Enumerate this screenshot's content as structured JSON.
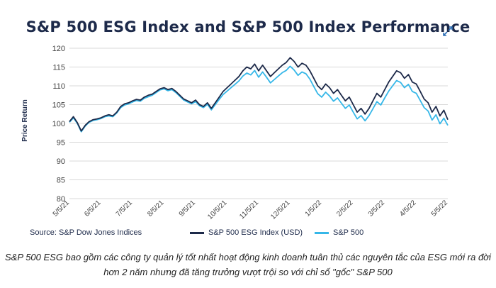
{
  "chart_data": {
    "type": "line",
    "title": "S&P 500 ESG Index and S&P 500 Index Performance",
    "ylabel": "Price Return",
    "xlabel": "",
    "ylim": [
      80,
      120
    ],
    "yticks": [
      80,
      85,
      90,
      95,
      100,
      105,
      110,
      115,
      120
    ],
    "xticks": [
      "5/5/21",
      "6/5/21",
      "7/5/21",
      "8/5/21",
      "9/5/21",
      "10/5/21",
      "11/5/21",
      "12/5/21",
      "1/5/22",
      "2/5/22",
      "3/5/22",
      "4/5/22",
      "5/5/22"
    ],
    "x_index": [
      0,
      1,
      2,
      3,
      4,
      5,
      6,
      7,
      8,
      9,
      10,
      11,
      12,
      13,
      14,
      15,
      16,
      17,
      18,
      19,
      20,
      21,
      22,
      23,
      24,
      25,
      26,
      27,
      28,
      29,
      30,
      31,
      32,
      33,
      34,
      35,
      36,
      37,
      38,
      39,
      40,
      41,
      42,
      43,
      44,
      45,
      46,
      47,
      48,
      49,
      50,
      51,
      52,
      53,
      54,
      55,
      56,
      57,
      58,
      59,
      60,
      61,
      62,
      63,
      64,
      65,
      66,
      67,
      68,
      69,
      70,
      71,
      72,
      73,
      74,
      75,
      76,
      77,
      78,
      79,
      80,
      81,
      82,
      83,
      84,
      85,
      86,
      87,
      88,
      89,
      90,
      91,
      92,
      93,
      94,
      95,
      96
    ],
    "series": [
      {
        "name": "S&P 500 ESG Index (USD)",
        "color": "#1d2a4a",
        "values": [
          100.5,
          101.8,
          100.2,
          98.0,
          99.5,
          100.5,
          101.0,
          101.2,
          101.5,
          102.0,
          102.3,
          102.0,
          103.0,
          104.5,
          105.2,
          105.5,
          106.0,
          106.4,
          106.2,
          107.0,
          107.5,
          107.8,
          108.5,
          109.2,
          109.5,
          109.0,
          109.3,
          108.5,
          107.5,
          106.5,
          106.0,
          105.5,
          106.2,
          105.0,
          104.5,
          105.5,
          104.0,
          105.5,
          107.0,
          108.5,
          109.5,
          110.5,
          111.5,
          112.5,
          114.0,
          115.0,
          114.5,
          115.8,
          114.0,
          115.5,
          114.0,
          112.5,
          113.5,
          114.5,
          115.5,
          116.2,
          117.5,
          116.5,
          115.0,
          116.0,
          115.5,
          114.0,
          112.0,
          110.0,
          109.0,
          110.5,
          109.5,
          108.0,
          109.0,
          107.5,
          106.0,
          107.0,
          105.0,
          103.0,
          104.0,
          102.5,
          104.0,
          106.0,
          108.0,
          107.0,
          109.0,
          111.0,
          112.5,
          114.0,
          113.5,
          112.0,
          113.0,
          111.0,
          110.5,
          108.5,
          106.5,
          105.5,
          103.0,
          104.5,
          102.0,
          103.5,
          101.0
        ]
      },
      {
        "name": "S&P 500",
        "color": "#36b7e8",
        "values": [
          100.3,
          101.5,
          100.0,
          97.8,
          99.3,
          100.3,
          100.8,
          101.0,
          101.3,
          101.8,
          102.0,
          101.8,
          102.8,
          104.2,
          104.9,
          105.2,
          105.7,
          106.1,
          105.9,
          106.7,
          107.1,
          107.5,
          108.2,
          108.9,
          109.2,
          108.7,
          109.0,
          108.2,
          107.2,
          106.2,
          105.7,
          105.2,
          105.8,
          104.7,
          104.2,
          105.1,
          103.6,
          105.0,
          106.4,
          107.7,
          108.6,
          109.5,
          110.4,
          111.3,
          112.6,
          113.4,
          112.9,
          114.1,
          112.3,
          113.7,
          112.3,
          110.8,
          111.7,
          112.6,
          113.5,
          114.1,
          115.2,
          114.2,
          112.8,
          113.7,
          113.2,
          111.8,
          109.8,
          107.9,
          107.0,
          108.3,
          107.3,
          105.9,
          106.8,
          105.4,
          104.0,
          104.9,
          103.0,
          101.2,
          102.1,
          100.7,
          102.1,
          103.9,
          105.8,
          104.9,
          106.8,
          108.6,
          110.0,
          111.4,
          110.9,
          109.5,
          110.4,
          108.5,
          108.0,
          106.1,
          104.2,
          103.3,
          100.9,
          102.3,
          99.9,
          101.4,
          99.5
        ]
      }
    ],
    "legend": "bottom"
  },
  "source_text": "Source: S&P Dow Jones Indices",
  "caption": "S&P 500 ESG bao gồm các công ty quản lý tốt nhất hoạt động kinh doanh tuân thủ các nguyên tắc của ESG mới ra đời hơn 2 năm nhưng đã tăng trưởng vượt trội so với chỉ số \"gốc\" S&P 500"
}
